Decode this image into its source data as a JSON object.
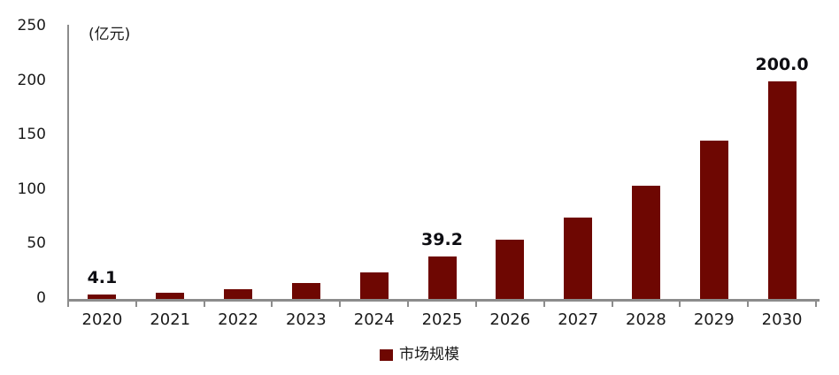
{
  "chart": {
    "unit_label": "(亿元)",
    "colors": {
      "bar": "#6e0702",
      "axis": "#8c8c8c",
      "text": "#1a1a1a",
      "background": "#ffffff"
    }
  },
  "chart_data": {
    "type": "bar",
    "title": "",
    "unit": "亿元",
    "categories": [
      "2020",
      "2021",
      "2022",
      "2023",
      "2024",
      "2025",
      "2026",
      "2027",
      "2028",
      "2029",
      "2030"
    ],
    "series": [
      {
        "name": "市场规模",
        "color": "#6e0702",
        "values": [
          4.1,
          6,
          9,
          15,
          24,
          39.2,
          54,
          75,
          104,
          145,
          200
        ]
      }
    ],
    "data_labels": [
      "4.1",
      "",
      "",
      "",
      "",
      "39.2",
      "",
      "",
      "",
      "",
      "200.0"
    ],
    "labeled_points": [
      {
        "category": "2020",
        "label": "4.1"
      },
      {
        "category": "2025",
        "label": "39.2"
      },
      {
        "category": "2030",
        "label": "200.0"
      }
    ],
    "ylabel": "(亿元)",
    "xlabel": "",
    "ylim": [
      0,
      250
    ],
    "yticks": [
      0,
      50,
      100,
      150,
      200,
      250
    ],
    "grid": false,
    "legend_position": "bottom"
  }
}
